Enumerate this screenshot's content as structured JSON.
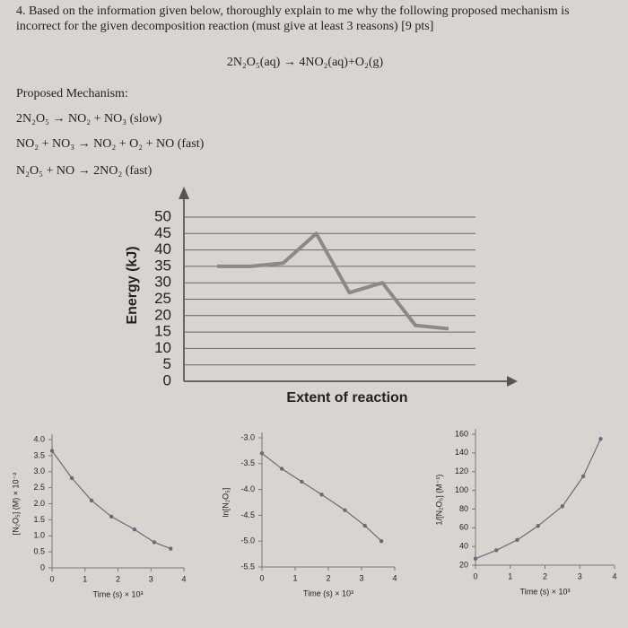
{
  "question": {
    "text": "4. Based on the information given below, thoroughly explain to me why the following proposed mechanism is incorrect for the given decomposition reaction (must give at least 3 reasons) [9 pts]"
  },
  "reaction": "2N₂O₅(aq) → 4NO₂(aq)+O₂(g)",
  "mechanism": {
    "heading": "Proposed Mechanism:",
    "steps": [
      "2N₂O₅ → NO₂ + NO₃ (slow)",
      "NO₂ + NO₃ → NO₂ + O₂ + NO (fast)",
      "N₂O₅ + NO → 2NO₂ (fast)"
    ]
  },
  "chart_data": [
    {
      "type": "line",
      "ylabel": "Energy (kJ)",
      "xlabel": "Extent of reaction",
      "categories": [
        null,
        null,
        null,
        null,
        null,
        null,
        null,
        null
      ],
      "series": [
        {
          "color": "#8a8a8a",
          "values": [
            35,
            35,
            36,
            45,
            27,
            30,
            17,
            16
          ]
        }
      ],
      "ylim": [
        0,
        50
      ],
      "yticks": [
        0,
        5,
        10,
        15,
        20,
        25,
        30,
        35,
        40,
        45,
        50
      ],
      "grid": true
    },
    {
      "type": "line",
      "markers": true,
      "ylabel": "[N₂O₅] (M) × 10⁻²",
      "xlabel": "Time (s) × 10³",
      "x": [
        0,
        0.6,
        1.2,
        1.8,
        2.5,
        3.1,
        3.6
      ],
      "series": [
        {
          "color": "#6a6a7a",
          "values": [
            3.65,
            2.8,
            2.1,
            1.6,
            1.2,
            0.8,
            0.6
          ]
        }
      ],
      "xlim": [
        0,
        4
      ],
      "xticks": [
        0,
        1,
        2,
        3,
        4
      ],
      "ylim": [
        0,
        4
      ],
      "yticks": [
        0,
        0.5,
        {
          "value": 1,
          "label": "1.0"
        },
        1.5,
        {
          "value": 2,
          "label": "2.0"
        },
        2.5,
        {
          "value": 3,
          "label": "3.0"
        },
        3.5,
        {
          "value": 4,
          "label": "4.0"
        }
      ]
    },
    {
      "type": "line",
      "markers": true,
      "ylabel": "ln[N₂O₅]",
      "xlabel": "Time (s) × 10³",
      "x": [
        0,
        0.6,
        1.2,
        1.8,
        2.5,
        3.1,
        3.6
      ],
      "series": [
        {
          "color": "#6a6a7a",
          "values": [
            -3.3,
            -3.6,
            -3.85,
            -4.1,
            -4.4,
            -4.7,
            -5.0
          ]
        }
      ],
      "xlim": [
        0,
        4
      ],
      "xticks": [
        0,
        1,
        2,
        3,
        4
      ],
      "ylim": [
        -5.5,
        -3
      ],
      "yticks": [
        -5.5,
        {
          "value": -5,
          "label": "-5.0"
        },
        -4.5,
        {
          "value": -4,
          "label": "-4.0"
        },
        -3.5,
        {
          "value": -3,
          "label": "-3.0"
        }
      ]
    },
    {
      "type": "line",
      "markers": true,
      "ylabel": "1/[N₂O₅] (M⁻¹)",
      "xlabel": "Time (s) × 10³",
      "x": [
        0,
        0.6,
        1.2,
        1.8,
        2.5,
        3.1,
        3.6
      ],
      "series": [
        {
          "color": "#6a6a7a",
          "values": [
            27,
            36,
            47,
            62,
            83,
            115,
            155
          ]
        }
      ],
      "xlim": [
        0,
        4
      ],
      "xticks": [
        0,
        1,
        2,
        3,
        4
      ],
      "ylim": [
        20,
        160
      ],
      "yticks": [
        20,
        40,
        60,
        80,
        100,
        120,
        140,
        160
      ]
    }
  ]
}
